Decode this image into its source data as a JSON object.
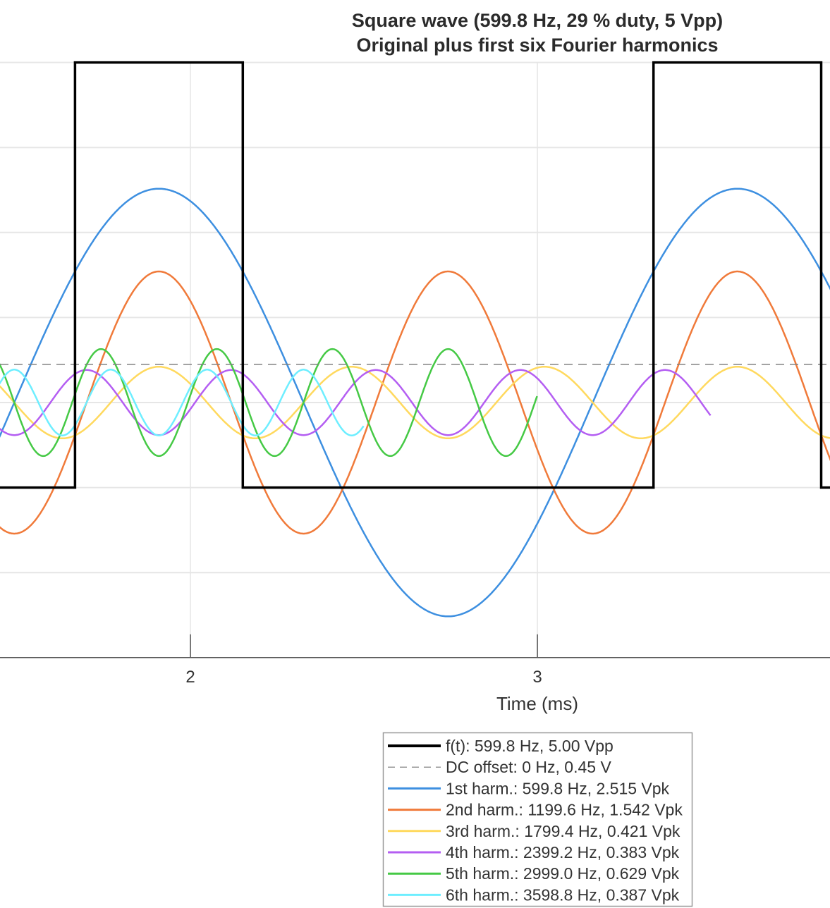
{
  "chart_data": {
    "type": "line",
    "title": [
      "Square wave (599.8 Hz, 29 % duty, 5 Vpp)",
      "Original plus first six Fourier harmonics"
    ],
    "xlabel": "Time (ms)",
    "ylabel": "",
    "x_ticks": [
      {
        "value": 2,
        "label": "2"
      },
      {
        "value": 3,
        "label": "3"
      }
    ],
    "xlim_visible": [
      1.451,
      3.843
    ],
    "ylim": [
      -3,
      4
    ],
    "y_grid_values": [
      -2,
      -1,
      0,
      1,
      2,
      3,
      4
    ],
    "grid": true,
    "legend_placement": "below-center",
    "square_wave": {
      "name": "f(t): 599.8 Hz, 5.00 Vpp",
      "frequency_hz": 599.8,
      "duty": 0.29,
      "vpp": 5,
      "low_v": -1,
      "high_v": 4,
      "color": "#000000"
    },
    "dc_offset": {
      "name": "DC offset: 0 Hz, 0.45 V",
      "value_v": 0.45,
      "color": "#808080"
    },
    "harmonics": [
      {
        "n": 1,
        "name": "1st harm.: 599.8 Hz, 2.515 Vpk",
        "frequency_hz": 599.8,
        "amplitude_vpk": 2.515,
        "t_end_ms": 5.0,
        "color": "#3d8fe0"
      },
      {
        "n": 2,
        "name": "2nd harm.: 1199.6 Hz, 1.542 Vpk",
        "frequency_hz": 1199.6,
        "amplitude_vpk": 1.542,
        "t_end_ms": 4.5,
        "color": "#f07a3a"
      },
      {
        "n": 3,
        "name": "3rd harm.: 1799.4 Hz, 0.421 Vpk",
        "frequency_hz": 1799.4,
        "amplitude_vpk": 0.421,
        "t_end_ms": 4.0,
        "color": "#ffd95e"
      },
      {
        "n": 4,
        "name": "4th harm.: 2399.2 Hz, 0.383 Vpk",
        "frequency_hz": 2399.2,
        "amplitude_vpk": 0.383,
        "t_end_ms": 3.5,
        "color": "#b45ef2"
      },
      {
        "n": 5,
        "name": "5th harm.: 2999.0 Hz, 0.629 Vpk",
        "frequency_hz": 2999.0,
        "amplitude_vpk": 0.629,
        "t_end_ms": 3.0,
        "color": "#45c945"
      },
      {
        "n": 6,
        "name": "6th harm.: 3598.8 Hz, 0.387 Vpk",
        "frequency_hz": 3598.8,
        "amplitude_vpk": 0.387,
        "t_end_ms": 2.5,
        "color": "#6eeeff"
      }
    ]
  }
}
